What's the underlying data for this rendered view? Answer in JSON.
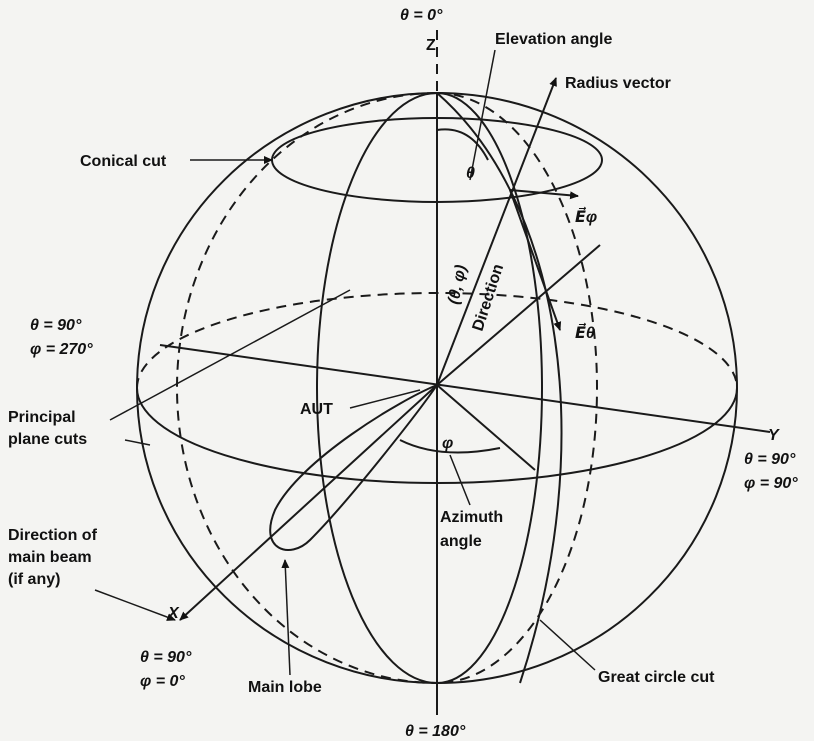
{
  "labels": {
    "theta_0": "θ = 0°",
    "z_axis": "Z",
    "elevation_angle": "Elevation angle",
    "radius_vector": "Radius vector",
    "conical_cut": "Conical cut",
    "theta": "θ",
    "e_phi": "E⃗φ",
    "e_theta": "E⃗θ",
    "theta_phi": "(θ, φ)",
    "direction": "Direction",
    "theta_90_left": [
      "θ = 90°",
      "φ = 270°"
    ],
    "principal_plane_cuts": [
      "Principal",
      "plane cuts"
    ],
    "aut": "AUT",
    "y_axis": "Y",
    "theta_90_right": [
      "θ = 90°",
      "φ = 90°"
    ],
    "phi": "φ",
    "azimuth_angle": [
      "Azimuth",
      "angle"
    ],
    "direction_of_main_beam": [
      "Direction of",
      "main beam",
      "(if any)"
    ],
    "x_axis": "X",
    "theta_90_bottom": [
      "θ = 90°",
      "φ = 0°"
    ],
    "main_lobe": "Main lobe",
    "great_circle_cut": "Great circle cut",
    "theta_180": "θ = 180°"
  }
}
